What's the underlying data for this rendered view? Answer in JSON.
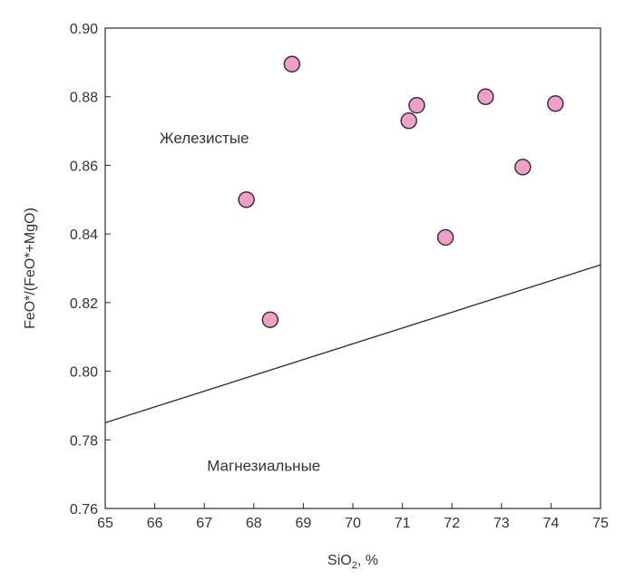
{
  "chart_data": {
    "type": "scatter",
    "xlabel": "SiO2, %",
    "xlabel_main": "SiO",
    "xlabel_sub": "2",
    "xlabel_suffix": ", %",
    "ylabel": "FeO*/(FeO*+MgO)",
    "xlim": [
      65,
      75
    ],
    "ylim": [
      0.76,
      0.9
    ],
    "x_ticks": [
      65,
      66,
      67,
      68,
      69,
      70,
      71,
      72,
      73,
      74,
      75
    ],
    "y_ticks": [
      0.76,
      0.78,
      0.8,
      0.82,
      0.84,
      0.86,
      0.88,
      0.9
    ],
    "x_tick_labels": [
      "65",
      "66",
      "67",
      "68",
      "69",
      "70",
      "71",
      "72",
      "73",
      "74",
      "75"
    ],
    "y_tick_labels": [
      "0.76",
      "0.78",
      "0.80",
      "0.82",
      "0.84",
      "0.86",
      "0.88",
      "0.90"
    ],
    "grid": false,
    "points": [
      {
        "x": 67.85,
        "y": 0.85
      },
      {
        "x": 68.33,
        "y": 0.815
      },
      {
        "x": 68.77,
        "y": 0.8895
      },
      {
        "x": 71.13,
        "y": 0.873
      },
      {
        "x": 71.29,
        "y": 0.8775
      },
      {
        "x": 71.87,
        "y": 0.839
      },
      {
        "x": 72.68,
        "y": 0.88
      },
      {
        "x": 73.43,
        "y": 0.8595
      },
      {
        "x": 74.09,
        "y": 0.878
      }
    ],
    "boundary_line": {
      "x": [
        65,
        75
      ],
      "y": [
        0.785,
        0.831
      ]
    },
    "regions": [
      {
        "id": "ferroan",
        "label": "Железистые",
        "x": 67.0,
        "y": 0.868
      },
      {
        "id": "magnesian",
        "label": "Магнезиальные",
        "x": 68.2,
        "y": 0.7725
      }
    ],
    "colors": {
      "marker_fill": "#f0a0c8",
      "marker_stroke": "#2b2b2b",
      "line": "#2b2b2b",
      "frame": "#2b2b2b"
    }
  }
}
